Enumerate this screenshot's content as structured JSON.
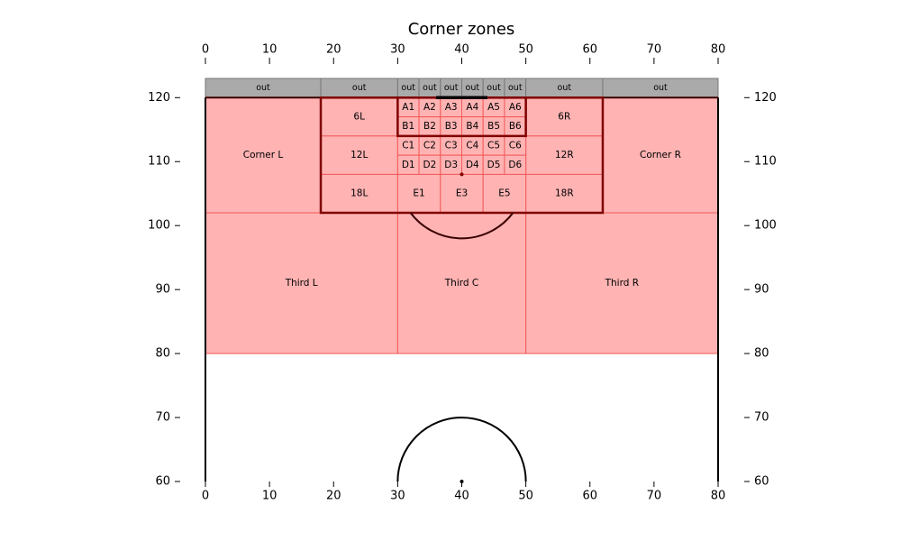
{
  "chart_data": {
    "type": "zones",
    "title": "Corner zones",
    "xlim": [
      0,
      80
    ],
    "ylim": [
      60,
      123
    ],
    "xticks": [
      0,
      10,
      20,
      30,
      40,
      50,
      60,
      70,
      80
    ],
    "yticks": [
      60,
      70,
      80,
      90,
      100,
      110,
      120
    ],
    "zone_color": "#ffb3b3",
    "zone_edge": "#f05a5a",
    "out_color": "#aaaaaa",
    "out_edge": "#777777",
    "zones": [
      {
        "label": "out",
        "kind": "out",
        "x": [
          0,
          18
        ],
        "y": [
          120,
          123
        ]
      },
      {
        "label": "out",
        "kind": "out",
        "x": [
          18,
          30
        ],
        "y": [
          120,
          123
        ]
      },
      {
        "label": "out",
        "kind": "out",
        "x": [
          30,
          33.33
        ],
        "y": [
          120,
          123
        ]
      },
      {
        "label": "out",
        "kind": "out",
        "x": [
          33.33,
          36.67
        ],
        "y": [
          120,
          123
        ]
      },
      {
        "label": "out",
        "kind": "out",
        "x": [
          36.67,
          40
        ],
        "y": [
          120,
          123
        ]
      },
      {
        "label": "out",
        "kind": "out",
        "x": [
          40,
          43.33
        ],
        "y": [
          120,
          123
        ]
      },
      {
        "label": "out",
        "kind": "out",
        "x": [
          43.33,
          46.67
        ],
        "y": [
          120,
          123
        ]
      },
      {
        "label": "out",
        "kind": "out",
        "x": [
          46.67,
          50
        ],
        "y": [
          120,
          123
        ]
      },
      {
        "label": "out",
        "kind": "out",
        "x": [
          50,
          62
        ],
        "y": [
          120,
          123
        ]
      },
      {
        "label": "out",
        "kind": "out",
        "x": [
          62,
          80
        ],
        "y": [
          120,
          123
        ]
      },
      {
        "label": "Corner L",
        "kind": "zone",
        "x": [
          0,
          18
        ],
        "y": [
          102,
          120
        ]
      },
      {
        "label": "Corner R",
        "kind": "zone",
        "x": [
          62,
          80
        ],
        "y": [
          102,
          120
        ]
      },
      {
        "label": "6L",
        "kind": "zone",
        "x": [
          18,
          30
        ],
        "y": [
          114,
          120
        ]
      },
      {
        "label": "12L",
        "kind": "zone",
        "x": [
          18,
          30
        ],
        "y": [
          108,
          114
        ]
      },
      {
        "label": "18L",
        "kind": "zone",
        "x": [
          18,
          30
        ],
        "y": [
          102,
          108
        ]
      },
      {
        "label": "6R",
        "kind": "zone",
        "x": [
          50,
          62
        ],
        "y": [
          114,
          120
        ]
      },
      {
        "label": "12R",
        "kind": "zone",
        "x": [
          50,
          62
        ],
        "y": [
          108,
          114
        ]
      },
      {
        "label": "18R",
        "kind": "zone",
        "x": [
          50,
          62
        ],
        "y": [
          102,
          108
        ]
      },
      {
        "label": "A1",
        "kind": "zone",
        "x": [
          30,
          33.33
        ],
        "y": [
          117,
          120
        ]
      },
      {
        "label": "A2",
        "kind": "zone",
        "x": [
          33.33,
          36.67
        ],
        "y": [
          117,
          120
        ]
      },
      {
        "label": "A3",
        "kind": "zone",
        "x": [
          36.67,
          40
        ],
        "y": [
          117,
          120
        ]
      },
      {
        "label": "A4",
        "kind": "zone",
        "x": [
          40,
          43.33
        ],
        "y": [
          117,
          120
        ]
      },
      {
        "label": "A5",
        "kind": "zone",
        "x": [
          43.33,
          46.67
        ],
        "y": [
          117,
          120
        ]
      },
      {
        "label": "A6",
        "kind": "zone",
        "x": [
          46.67,
          50
        ],
        "y": [
          117,
          120
        ]
      },
      {
        "label": "B1",
        "kind": "zone",
        "x": [
          30,
          33.33
        ],
        "y": [
          114,
          117
        ]
      },
      {
        "label": "B2",
        "kind": "zone",
        "x": [
          33.33,
          36.67
        ],
        "y": [
          114,
          117
        ]
      },
      {
        "label": "B3",
        "kind": "zone",
        "x": [
          36.67,
          40
        ],
        "y": [
          114,
          117
        ]
      },
      {
        "label": "B4",
        "kind": "zone",
        "x": [
          40,
          43.33
        ],
        "y": [
          114,
          117
        ]
      },
      {
        "label": "B5",
        "kind": "zone",
        "x": [
          43.33,
          46.67
        ],
        "y": [
          114,
          117
        ]
      },
      {
        "label": "B6",
        "kind": "zone",
        "x": [
          46.67,
          50
        ],
        "y": [
          114,
          117
        ]
      },
      {
        "label": "C1",
        "kind": "zone",
        "x": [
          30,
          33.33
        ],
        "y": [
          111,
          114
        ]
      },
      {
        "label": "C2",
        "kind": "zone",
        "x": [
          33.33,
          36.67
        ],
        "y": [
          111,
          114
        ]
      },
      {
        "label": "C3",
        "kind": "zone",
        "x": [
          36.67,
          40
        ],
        "y": [
          111,
          114
        ]
      },
      {
        "label": "C4",
        "kind": "zone",
        "x": [
          40,
          43.33
        ],
        "y": [
          111,
          114
        ]
      },
      {
        "label": "C5",
        "kind": "zone",
        "x": [
          43.33,
          46.67
        ],
        "y": [
          111,
          114
        ]
      },
      {
        "label": "C6",
        "kind": "zone",
        "x": [
          46.67,
          50
        ],
        "y": [
          111,
          114
        ]
      },
      {
        "label": "D1",
        "kind": "zone",
        "x": [
          30,
          33.33
        ],
        "y": [
          108,
          111
        ]
      },
      {
        "label": "D2",
        "kind": "zone",
        "x": [
          33.33,
          36.67
        ],
        "y": [
          108,
          111
        ]
      },
      {
        "label": "D3",
        "kind": "zone",
        "x": [
          36.67,
          40
        ],
        "y": [
          108,
          111
        ]
      },
      {
        "label": "D4",
        "kind": "zone",
        "x": [
          40,
          43.33
        ],
        "y": [
          108,
          111
        ]
      },
      {
        "label": "D5",
        "kind": "zone",
        "x": [
          43.33,
          46.67
        ],
        "y": [
          108,
          111
        ]
      },
      {
        "label": "D6",
        "kind": "zone",
        "x": [
          46.67,
          50
        ],
        "y": [
          108,
          111
        ]
      },
      {
        "label": "E1",
        "kind": "zone",
        "x": [
          30,
          36.67
        ],
        "y": [
          102,
          108
        ]
      },
      {
        "label": "E3",
        "kind": "zone",
        "x": [
          36.67,
          43.33
        ],
        "y": [
          102,
          108
        ]
      },
      {
        "label": "E5",
        "kind": "zone",
        "x": [
          43.33,
          50
        ],
        "y": [
          102,
          108
        ]
      },
      {
        "label": "Third L",
        "kind": "zone",
        "x": [
          0,
          30
        ],
        "y": [
          80,
          102
        ]
      },
      {
        "label": "Third C",
        "kind": "zone",
        "x": [
          30,
          50
        ],
        "y": [
          80,
          102
        ]
      },
      {
        "label": "Third R",
        "kind": "zone",
        "x": [
          50,
          80
        ],
        "y": [
          80,
          102
        ]
      }
    ]
  }
}
